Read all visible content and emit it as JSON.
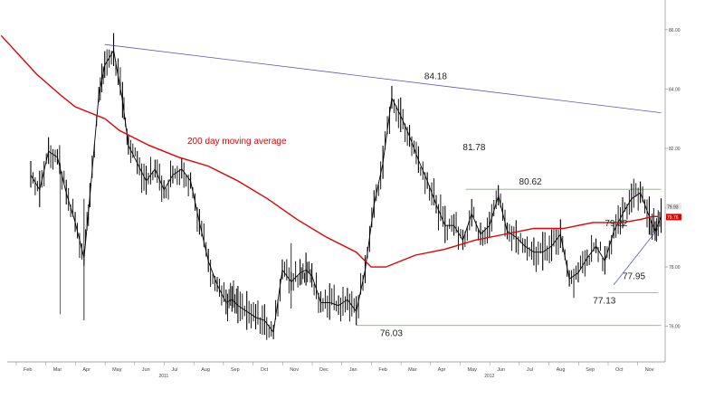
{
  "chart_data": {
    "type": "line",
    "title": "",
    "xlabel": "",
    "ylabel": "",
    "ylim": [
      74.8,
      87.0
    ],
    "yticks": [
      "86.00",
      "84.00",
      "82.00",
      "80.00",
      "78.00",
      "76.00"
    ],
    "ytick_values": [
      86,
      84,
      82,
      80,
      78,
      76
    ],
    "months": [
      "Feb",
      "Mar",
      "Apr",
      "May",
      "Jun",
      "Jul",
      "Aug",
      "Sep",
      "Oct",
      "Nov",
      "Dec",
      "Jan",
      "Feb",
      "Mar",
      "Apr",
      "May",
      "Jun",
      "Jul",
      "Aug",
      "Sep",
      "Oct",
      "Nov"
    ],
    "years": [
      {
        "label": "2011",
        "month_index": 5
      },
      {
        "label": "2012",
        "month_index": 16
      }
    ],
    "series": [
      {
        "name": "",
        "color": "#000000",
        "style": "bar",
        "x": [
          0,
          0.3,
          0.6,
          0.9,
          1.2,
          1.5,
          1.8,
          2.0,
          2.3,
          2.5,
          2.8,
          3.1,
          3.3,
          3.6,
          3.9,
          4.2,
          4.5,
          4.8,
          5.1,
          5.4,
          5.7,
          6.0,
          6.3,
          6.6,
          6.8,
          7.0,
          7.3,
          7.6,
          7.9,
          8.2,
          8.5,
          8.8,
          9.1,
          9.3,
          9.5,
          9.8,
          10.1,
          10.4,
          10.7,
          11.0,
          11.3,
          11.6,
          11.9,
          12.2,
          12.5,
          12.8,
          13.1,
          13.4,
          13.7,
          14.0,
          14.3,
          14.6,
          14.9,
          15.2,
          15.5,
          15.8,
          16.1,
          16.4,
          16.7,
          17.0,
          17.3,
          17.6,
          17.9,
          18.2,
          18.5,
          18.8,
          19.1,
          19.4,
          19.7,
          20.0,
          20.3,
          20.6,
          20.9,
          21.1,
          21.3
        ],
        "values": [
          81.1,
          80.6,
          81.9,
          81.7,
          80.5,
          79.5,
          78.3,
          80.4,
          83.8,
          84.8,
          85.3,
          83.6,
          82.1,
          81.5,
          80.9,
          81.3,
          80.6,
          81.1,
          81.3,
          80.9,
          79.5,
          78.2,
          77.4,
          76.8,
          76.9,
          76.7,
          76.5,
          76.3,
          76.2,
          75.8,
          77.9,
          77.5,
          77.8,
          77.9,
          77.7,
          76.8,
          76.8,
          76.7,
          76.9,
          76.5,
          77.9,
          80.1,
          81.5,
          83.7,
          83.1,
          82.4,
          81.6,
          80.9,
          80.1,
          79.4,
          79.4,
          78.9,
          79.8,
          79.1,
          79.4,
          80.4,
          79.2,
          79.0,
          78.7,
          78.5,
          78.5,
          78.7,
          79.1,
          77.6,
          77.8,
          78.3,
          78.7,
          78.2,
          79.2,
          79.8,
          80.3,
          80.5,
          79.7,
          79.2,
          79.7
        ]
      },
      {
        "name": "200 day moving average",
        "color": "#e00000",
        "style": "line",
        "x": [
          -1.0,
          0.2,
          1.0,
          1.5,
          2.0,
          2.5,
          3.0,
          4.0,
          5.0,
          6.0,
          7.0,
          8.0,
          9.0,
          10.0,
          11.0,
          11.5,
          12.0,
          12.5,
          13.0,
          14.0,
          15.0,
          16.0,
          17.0,
          18.0,
          19.0,
          20.0,
          20.6,
          21.0,
          21.2
        ],
        "values": [
          85.8,
          84.5,
          83.8,
          83.4,
          83.2,
          83.0,
          82.6,
          82.1,
          81.7,
          81.4,
          80.9,
          80.3,
          79.6,
          79.0,
          78.5,
          78.0,
          78.0,
          78.2,
          78.4,
          78.6,
          78.9,
          79.1,
          79.3,
          79.3,
          79.5,
          79.5,
          79.6,
          79.7,
          79.7
        ]
      }
    ],
    "trendlines": [
      {
        "name": "",
        "color": "#5a5ab4",
        "x": [
          2.5,
          21.3
        ],
        "values": [
          85.5,
          83.2
        ]
      },
      {
        "name": "",
        "color": "#7ab87a",
        "x": [
          14.7,
          21.3
        ],
        "values": [
          80.62,
          80.62
        ]
      },
      {
        "name": "",
        "color": "#7ab87a",
        "x": [
          11.0,
          21.3
        ],
        "values": [
          76.03,
          76.03
        ]
      },
      {
        "name": "",
        "color": "#999999",
        "x": [
          19.5,
          21.2
        ],
        "values": [
          77.13,
          77.13
        ]
      },
      {
        "name": "",
        "color": "#5a5ab4",
        "x": [
          19.7,
          21.2
        ],
        "values": [
          77.4,
          79.3
        ]
      }
    ],
    "annotations": [
      {
        "text": "84.18",
        "x": 13.3,
        "y": 84.18
      },
      {
        "text": "81.78",
        "x": 14.6,
        "y": 81.78
      },
      {
        "text": "80.62",
        "x": 16.5,
        "y": 80.62
      },
      {
        "text": "79.22",
        "x": 19.4,
        "y": 79.22
      },
      {
        "text": "77.95",
        "x": 20.0,
        "y": 77.95
      },
      {
        "text": "77.13",
        "x": 19.0,
        "y": 77.13
      },
      {
        "text": "76.03",
        "x": 11.8,
        "y": 76.03
      }
    ],
    "ma_label": "200 day moving average",
    "last_price_tags": [
      {
        "text": "79.93",
        "color": "#e8e8e8",
        "text_color": "#222222",
        "value": 79.93
      },
      {
        "text": "79.76",
        "color": "#e00000",
        "text_color": "#ffffff",
        "value": 79.76
      }
    ],
    "grid": false,
    "legend": "none"
  }
}
